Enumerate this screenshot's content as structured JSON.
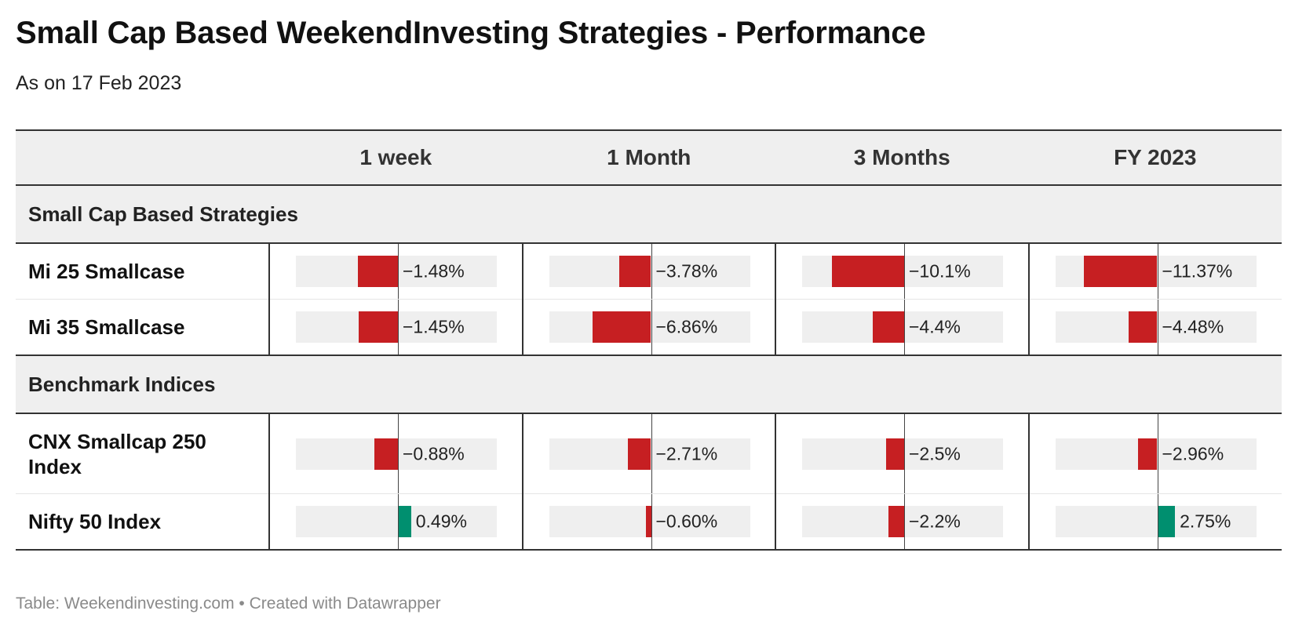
{
  "title": "Small Cap Based WeekendInvesting Strategies - Performance",
  "subtitle": "As on 17 Feb 2023",
  "footer": "Table: Weekendinvesting.com • Created with Datawrapper",
  "colors": {
    "negative": "#c61f22",
    "positive": "#008f6f",
    "header_bg": "#efefef"
  },
  "chart_data": {
    "type": "table",
    "columns": [
      "",
      "1 week",
      "1 Month",
      "3 Months",
      "FY 2023"
    ],
    "groups": [
      {
        "label": "Small Cap Based Strategies",
        "rows": [
          {
            "name": "Mi 25 Smallcase",
            "values": [
              -1.48,
              -3.78,
              -10.1,
              -11.37
            ],
            "labels": [
              "−1.48%",
              "−3.78%",
              "−10.1%",
              "−11.37%"
            ]
          },
          {
            "name": "Mi 35 Smallcase",
            "values": [
              -1.45,
              -6.86,
              -4.4,
              -4.48
            ],
            "labels": [
              "−1.45%",
              "−6.86%",
              "−4.4%",
              "−4.48%"
            ]
          }
        ]
      },
      {
        "label": "Benchmark Indices",
        "rows": [
          {
            "name": "CNX Smallcap 250 Index",
            "values": [
              -0.88,
              -2.71,
              -2.5,
              -2.96
            ],
            "labels": [
              "−0.88%",
              "−2.71%",
              "−2.5%",
              "−2.96%"
            ]
          },
          {
            "name": "Nifty 50 Index",
            "values": [
              0.49,
              -0.6,
              -2.2,
              2.75
            ],
            "labels": [
              "0.49%",
              "−0.60%",
              "−2.2%",
              "2.75%"
            ]
          }
        ]
      }
    ],
    "column_ranges": [
      [
        -3.8,
        3.8
      ],
      [
        -12,
        12
      ],
      [
        -14.3,
        14.3
      ],
      [
        -15.8,
        15.8
      ]
    ]
  }
}
